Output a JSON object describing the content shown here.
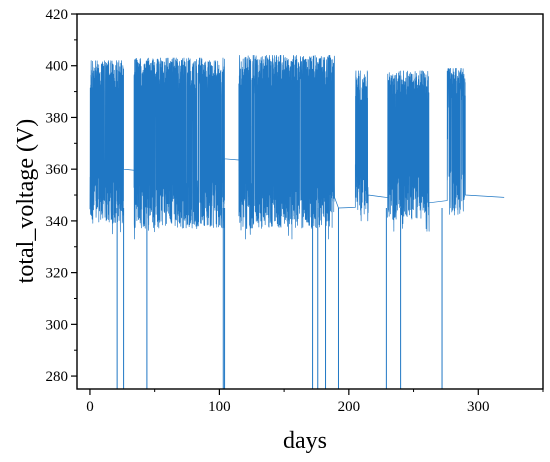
{
  "chart_data": {
    "type": "line",
    "title": "",
    "xlabel": "days",
    "ylabel": "total_voltage (V)",
    "xlim": [
      -10,
      350
    ],
    "ylim": [
      275,
      420
    ],
    "x_ticks": [
      0,
      100,
      200,
      300
    ],
    "y_ticks": [
      280,
      300,
      320,
      340,
      360,
      380,
      400,
      420
    ],
    "grid": false,
    "legend": "none",
    "line_color": "#1f77c4",
    "series": [
      {
        "segments": [
          {
            "type": "dense",
            "x_range": [
              0,
              26
            ],
            "y_range": [
              335,
              402
            ]
          },
          {
            "type": "flat",
            "x_range": [
              26,
              34
            ],
            "y": 360
          },
          {
            "type": "dense",
            "x_range": [
              34,
              104
            ],
            "y_range": [
              333,
              403
            ]
          },
          {
            "type": "flat",
            "x_range": [
              104,
              115
            ],
            "y": 364
          },
          {
            "type": "dense",
            "x_range": [
              115,
              189
            ],
            "y_range": [
              333,
              404
            ]
          },
          {
            "type": "flat",
            "x_range": [
              192,
              205
            ],
            "y": 345
          },
          {
            "type": "dense",
            "x_range": [
              205,
              215
            ],
            "y_range": [
              340,
              398
            ]
          },
          {
            "type": "flat",
            "x_range": [
              215,
              230
            ],
            "y": 350
          },
          {
            "type": "dense",
            "x_range": [
              230,
              262
            ],
            "y_range": [
              336,
              398
            ]
          },
          {
            "type": "flat",
            "x_range": [
              262,
              276
            ],
            "y": 347
          },
          {
            "type": "dense",
            "x_range": [
              276,
              290
            ],
            "y_range": [
              338,
              399
            ]
          },
          {
            "type": "flat",
            "x_range": [
              290,
              320
            ],
            "y": 350
          }
        ],
        "drop_days": [
          21,
          26,
          44,
          103,
          104,
          172,
          176,
          182,
          192,
          229,
          240,
          272
        ]
      }
    ]
  }
}
